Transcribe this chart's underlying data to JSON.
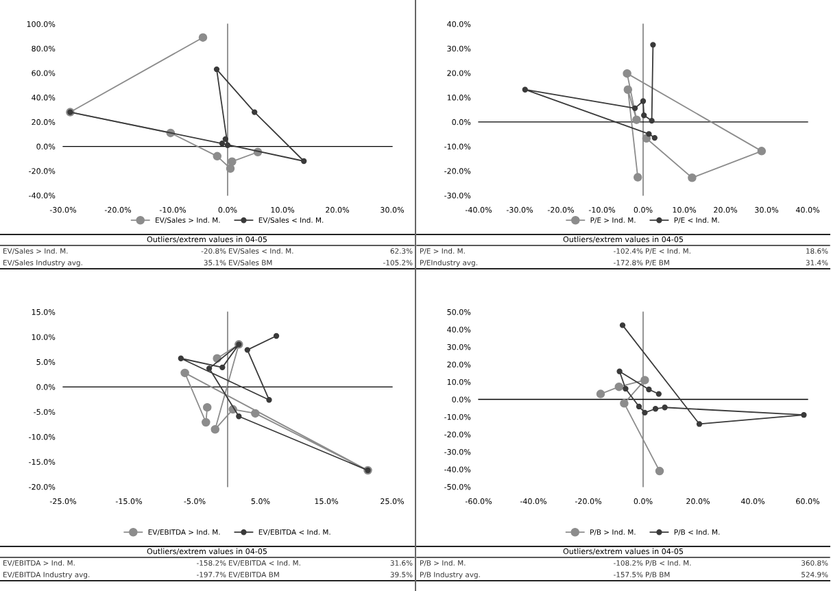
{
  "chart_data": [
    {
      "type": "line",
      "marker": "circle",
      "legend": "bottom",
      "xlim": [
        -30,
        30
      ],
      "xticks": [
        {
          "value": -30,
          "label": "-30.0%"
        },
        {
          "value": -20,
          "label": "-20.0%"
        },
        {
          "value": -10,
          "label": "-10.0%"
        },
        {
          "value": 0,
          "label": "0.0%"
        },
        {
          "value": 10,
          "label": "10.0%"
        },
        {
          "value": 20,
          "label": "20.0%"
        },
        {
          "value": 30,
          "label": "30.0%"
        }
      ],
      "ylim": [
        -40,
        100
      ],
      "yticks": [
        {
          "value": -40,
          "label": "-40.0%"
        },
        {
          "value": -20,
          "label": "-20.0%"
        },
        {
          "value": 0,
          "label": "0.0%"
        },
        {
          "value": 20,
          "label": "20.0%"
        },
        {
          "value": 40,
          "label": "40.0%"
        },
        {
          "value": 60,
          "label": "60.0%"
        },
        {
          "value": 80,
          "label": "80.0%"
        },
        {
          "value": 100,
          "label": "100.0%"
        }
      ],
      "series": [
        {
          "name": "EV/Sales > Ind. M.",
          "color": "#8c8c8c",
          "x": [
            -4.5,
            -28.7,
            -10.4,
            -1.9,
            0.5,
            0.8,
            5.5
          ],
          "values": [
            89,
            28,
            11,
            -8,
            -18,
            -12.4,
            -4.6
          ]
        },
        {
          "name": "EV/Sales < Ind. M.",
          "color": "#3a3a3a",
          "x": [
            -28.7,
            -1,
            13.9,
            4.9,
            -2,
            0,
            -0.4
          ],
          "values": [
            28,
            2.4,
            -12,
            28,
            63,
            1,
            6
          ]
        }
      ],
      "annotations": [
        "Outliers/extrem values in 04-05",
        "EV/Sales > Ind. M.",
        "-20.8%",
        "EV/Sales < Ind. M.",
        "62.3%",
        "EV/Sales Industry avg.",
        "35.1%",
        "EV/Sales BM",
        "-105.2%"
      ]
    },
    {
      "type": "line",
      "marker": "circle",
      "legend": "bottom",
      "xlim": [
        -40,
        40
      ],
      "xticks": [
        {
          "value": -40,
          "label": "-40.0%"
        },
        {
          "value": -30,
          "label": "-30.0%"
        },
        {
          "value": -20,
          "label": "-20.0%"
        },
        {
          "value": -10,
          "label": "-10.0%"
        },
        {
          "value": 0,
          "label": "0.0%"
        },
        {
          "value": 10,
          "label": "10.0%"
        },
        {
          "value": 20,
          "label": "20.0%"
        },
        {
          "value": 30,
          "label": "30.0%"
        },
        {
          "value": 40,
          "label": "40.0%"
        }
      ],
      "ylim": [
        -30,
        40
      ],
      "yticks": [
        {
          "value": -30,
          "label": "-30.0%"
        },
        {
          "value": -20,
          "label": "-20.0%"
        },
        {
          "value": -10,
          "label": "-10.0%"
        },
        {
          "value": 0,
          "label": "0.0%"
        },
        {
          "value": 10,
          "label": "10.0%"
        },
        {
          "value": 20,
          "label": "20.0%"
        },
        {
          "value": 30,
          "label": "30.0%"
        },
        {
          "value": 40,
          "label": "40.0%"
        }
      ],
      "series": [
        {
          "name": "P/E > Ind. M.",
          "color": "#8c8c8c",
          "x": [
            -1.3,
            -3.7,
            -1.6,
            -3.9,
            28.8,
            11.9,
            0.8
          ],
          "values": [
            -22.6,
            13.2,
            0.9,
            19.8,
            -11.9,
            -22.8,
            -6.7
          ]
        },
        {
          "name": "P/E < Ind. M.",
          "color": "#3a3a3a",
          "x": [
            2.4,
            2.1,
            0.2,
            0,
            -2,
            -28.7,
            1.4,
            2.8
          ],
          "values": [
            31.5,
            0.5,
            2.7,
            8.5,
            5.6,
            13.2,
            -4.9,
            -6.5
          ]
        }
      ],
      "annotations": [
        "Outliers/extrem values in 04-05",
        "P/E > Ind. M.",
        "-102.4%",
        "P/E < Ind. M.",
        "18.6%",
        "P/EIndustry avg.",
        "-172.8%",
        "P/E BM",
        "31.4%"
      ]
    },
    {
      "type": "line",
      "marker": "circle",
      "legend": "bottom",
      "xlim": [
        -25,
        25
      ],
      "xticks": [
        {
          "value": -25,
          "label": "-25.0%"
        },
        {
          "value": -15,
          "label": "-15.0%"
        },
        {
          "value": -5,
          "label": "-5.0%"
        },
        {
          "value": 5,
          "label": "5.0%"
        },
        {
          "value": 15,
          "label": "15.0%"
        },
        {
          "value": 25,
          "label": "25.0%"
        }
      ],
      "ylim": [
        -20,
        15
      ],
      "yticks": [
        {
          "value": -20,
          "label": "-20.0%"
        },
        {
          "value": -15,
          "label": "-15.0%"
        },
        {
          "value": -10,
          "label": "-10.0%"
        },
        {
          "value": -5,
          "label": "-5.0%"
        },
        {
          "value": 0,
          "label": "0.0%"
        },
        {
          "value": 5,
          "label": "5.0%"
        },
        {
          "value": 10,
          "label": "10.0%"
        },
        {
          "value": 15,
          "label": "15.0%"
        }
      ],
      "series": [
        {
          "name": "EV/EBITDA > Ind. M.",
          "color": "#8c8c8c",
          "x": [
            -3.1,
            -3.3,
            -6.5,
            21.3,
            4.2,
            0.8,
            -1.9,
            1.7,
            -1.6
          ],
          "values": [
            -4.1,
            -7.1,
            2.8,
            -16.7,
            -5.3,
            -4.5,
            -8.5,
            8.5,
            5.7
          ]
        },
        {
          "name": "EV/EBITDA < Ind. M.",
          "color": "#3a3a3a",
          "x": [
            7.4,
            3,
            6.3,
            -7.1,
            -0.8,
            1.7,
            -2.8,
            1.7,
            21.3
          ],
          "values": [
            10.2,
            7.4,
            -2.6,
            5.7,
            3.9,
            8.5,
            3.7,
            -5.9,
            -16.7
          ]
        }
      ],
      "annotations": [
        "Outliers/extrem values in 04-05",
        "EV/EBITDA > Ind. M.",
        "-158.2%",
        "EV/EBITDA < Ind. M.",
        "31.6%",
        "EV/EBITDA Industry avg.",
        "-197.7%",
        "EV/EBITDA BM",
        "39.5%"
      ]
    },
    {
      "type": "line",
      "marker": "circle",
      "legend": "bottom",
      "xlim": [
        -60,
        60
      ],
      "xticks": [
        {
          "value": -60,
          "label": "-60.0%"
        },
        {
          "value": -40,
          "label": "-40.0%"
        },
        {
          "value": -20,
          "label": "-20.0%"
        },
        {
          "value": 0,
          "label": "0.0%"
        },
        {
          "value": 20,
          "label": "20.0%"
        },
        {
          "value": 40,
          "label": "40.0%"
        },
        {
          "value": 60,
          "label": "60.0%"
        }
      ],
      "ylim": [
        -50,
        50
      ],
      "yticks": [
        {
          "value": -50,
          "label": "-50.0%"
        },
        {
          "value": -40,
          "label": "-40.0%"
        },
        {
          "value": -30,
          "label": "-30.0%"
        },
        {
          "value": -20,
          "label": "-20.0%"
        },
        {
          "value": -10,
          "label": "-10.0%"
        },
        {
          "value": 0,
          "label": "0.0%"
        },
        {
          "value": 10,
          "label": "10.0%"
        },
        {
          "value": 20,
          "label": "20.0%"
        },
        {
          "value": 30,
          "label": "30.0%"
        },
        {
          "value": 40,
          "label": "40.0%"
        },
        {
          "value": 50,
          "label": "50.0%"
        }
      ],
      "series": [
        {
          "name": "P/B > Ind. M.",
          "color": "#8c8c8c",
          "x": [
            -15.5,
            -8.8,
            0.6,
            -6.9,
            6
          ],
          "values": [
            3.1,
            7.2,
            11,
            -2.3,
            -41
          ]
        },
        {
          "name": "P/B < Ind. M.",
          "color": "#3a3a3a",
          "x": [
            -7.5,
            20.5,
            58.6,
            7.9,
            4.5,
            0.6,
            -1.5,
            -6.4,
            -8.6,
            2.1,
            5.7
          ],
          "values": [
            42.4,
            -14.1,
            -8.9,
            -4.6,
            -5.4,
            -7.6,
            -4.1,
            6.1,
            16,
            5.7,
            3.1
          ]
        }
      ],
      "annotations": [
        "Outliers/extrem values in 04-05",
        "P/B > Ind. M.",
        "-108.2%",
        "P/B < Ind. M.",
        "360.8%",
        "P/B Industry avg.",
        "-157.5%",
        "P/B BM",
        "524.9%"
      ]
    }
  ]
}
